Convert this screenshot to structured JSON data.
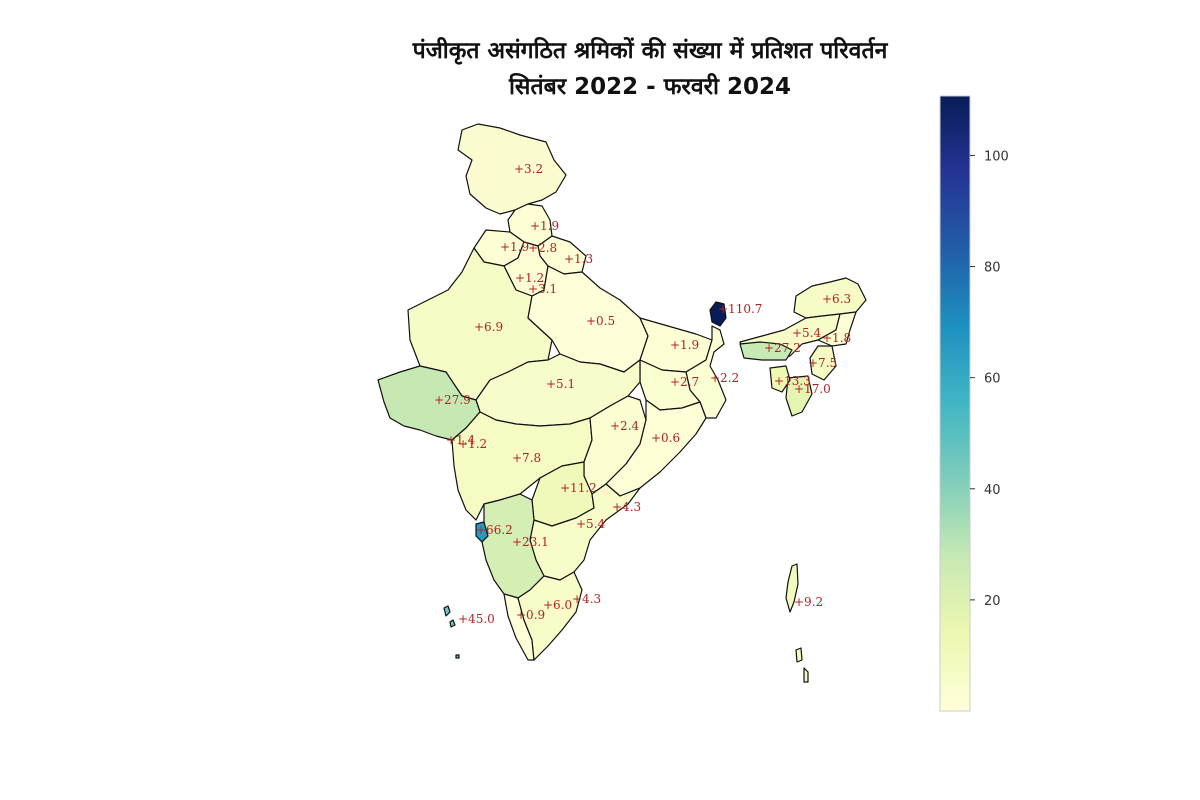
{
  "title": {
    "line1": "पंजीकृत असंगठित श्रमिकों की संख्या में प्रतिशत परिवर्तन",
    "line2": "सितंबर 2022 - फरवरी 2024"
  },
  "colorbar": {
    "colormap": "YlGnBu",
    "min": 0,
    "max": 110.7,
    "ticks": [
      "20",
      "40",
      "60",
      "80",
      "100"
    ],
    "tick_values": [
      20,
      40,
      60,
      80,
      100
    ]
  },
  "map": {
    "country": "India",
    "regions": [
      {
        "name": "Jammu and Kashmir",
        "label": "+3.2",
        "value": 3.2
      },
      {
        "name": "Himachal Pradesh",
        "label": "+1.9",
        "value": 1.9
      },
      {
        "name": "Punjab",
        "label": "+1.9",
        "value": 1.9
      },
      {
        "name": "Chandigarh",
        "label": "+2.8",
        "value": 2.8
      },
      {
        "name": "Uttarakhand",
        "label": "+1.3",
        "value": 1.3
      },
      {
        "name": "Haryana",
        "label": "+1.2",
        "value": 1.2
      },
      {
        "name": "Delhi",
        "label": "+3.1",
        "value": 3.1
      },
      {
        "name": "Rajasthan",
        "label": "+6.9",
        "value": 6.9
      },
      {
        "name": "Uttar Pradesh",
        "label": "+0.5",
        "value": 0.5
      },
      {
        "name": "Bihar",
        "label": "+1.9",
        "value": 1.9
      },
      {
        "name": "Sikkim",
        "label": "+110.7",
        "value": 110.7
      },
      {
        "name": "Arunachal Pradesh",
        "label": "+6.3",
        "value": 6.3
      },
      {
        "name": "Assam",
        "label": "+5.4",
        "value": 5.4
      },
      {
        "name": "Nagaland",
        "label": "+1.8",
        "value": 1.8
      },
      {
        "name": "Meghalaya",
        "label": "+27.2",
        "value": 27.2
      },
      {
        "name": "Manipur",
        "label": "+7.5",
        "value": 7.5
      },
      {
        "name": "Tripura",
        "label": "+13.3",
        "value": 13.3
      },
      {
        "name": "Mizoram",
        "label": "+17.0",
        "value": 17.0
      },
      {
        "name": "Gujarat",
        "label": "+27.9",
        "value": 27.9
      },
      {
        "name": "Madhya Pradesh",
        "label": "+5.1",
        "value": 5.1
      },
      {
        "name": "Jharkhand",
        "label": "+2.7",
        "value": 2.7
      },
      {
        "name": "West Bengal",
        "label": "+2.2",
        "value": 2.2
      },
      {
        "name": "Chhattisgarh",
        "label": "+2.4",
        "value": 2.4
      },
      {
        "name": "Odisha",
        "label": "+0.6",
        "value": 0.6
      },
      {
        "name": "Daman and Diu",
        "label": "+1.4",
        "value": 1.4
      },
      {
        "name": "Dadra and Nagar Haveli",
        "label": "+1.2",
        "value": 1.2
      },
      {
        "name": "Maharashtra",
        "label": "+7.8",
        "value": 7.8
      },
      {
        "name": "Telangana",
        "label": "+11.2",
        "value": 11.2
      },
      {
        "name": "Andhra Pradesh",
        "label": "+5.4",
        "value": 5.4
      },
      {
        "name": "Puducherry (Yanam)",
        "label": "+4.3",
        "value": 4.3
      },
      {
        "name": "Goa",
        "label": "+66.2",
        "value": 66.2
      },
      {
        "name": "Karnataka",
        "label": "+23.1",
        "value": 23.1
      },
      {
        "name": "Tamil Nadu",
        "label": "+6.0",
        "value": 6.0
      },
      {
        "name": "Puducherry",
        "label": "+4.3",
        "value": 4.3
      },
      {
        "name": "Kerala",
        "label": "+0.9",
        "value": 0.9
      },
      {
        "name": "Lakshadweep",
        "label": "+45.0",
        "value": 45.0
      },
      {
        "name": "Andaman and Nicobar Islands",
        "label": "+9.2",
        "value": 9.2
      }
    ]
  }
}
